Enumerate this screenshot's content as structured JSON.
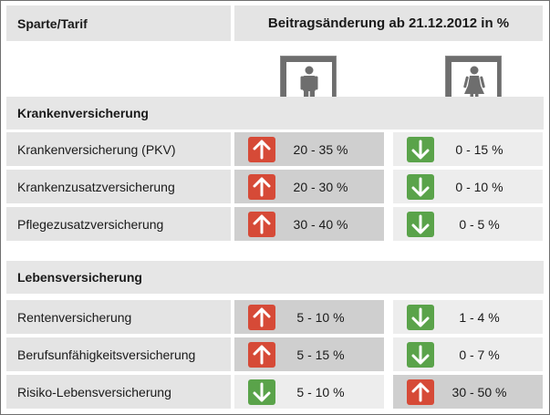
{
  "header": {
    "left": "Sparte/Tarif",
    "right": "Beitragsänderung ab 21.12.2012 in %"
  },
  "columns": [
    {
      "icon": "male-person-icon"
    },
    {
      "icon": "female-person-icon"
    }
  ],
  "colors": {
    "up_arrow": "#d64a37",
    "down_arrow": "#5aa34a",
    "header_bg": "#e4e4e4"
  },
  "sections": [
    {
      "title": "Krankenversicherung",
      "rows": [
        {
          "label": "Krankenversicherung (PKV)",
          "men": {
            "direction": "up",
            "value": "20 - 35 %"
          },
          "women": {
            "direction": "down",
            "value": "0 - 15 %"
          }
        },
        {
          "label": "Krankenzusatzversicherung",
          "men": {
            "direction": "up",
            "value": "20 - 30 %"
          },
          "women": {
            "direction": "down",
            "value": "0 - 10 %"
          }
        },
        {
          "label": "Pflegezusatzversicherung",
          "men": {
            "direction": "up",
            "value": "30 - 40 %"
          },
          "women": {
            "direction": "down",
            "value": "0 - 5 %"
          }
        }
      ]
    },
    {
      "title": "Lebensversicherung",
      "rows": [
        {
          "label": "Rentenversicherung",
          "men": {
            "direction": "up",
            "value": "5 - 10 %"
          },
          "women": {
            "direction": "down",
            "value": "1 - 4 %"
          }
        },
        {
          "label": "Berufsunfähigkeitsversicherung",
          "men": {
            "direction": "up",
            "value": "5 - 15 %"
          },
          "women": {
            "direction": "down",
            "value": "0 - 7 %"
          }
        },
        {
          "label": "Risiko-Lebensversicherung",
          "men": {
            "direction": "down",
            "value": "5 - 10 %"
          },
          "women": {
            "direction": "up",
            "value": "30 - 50 %"
          }
        }
      ]
    }
  ]
}
